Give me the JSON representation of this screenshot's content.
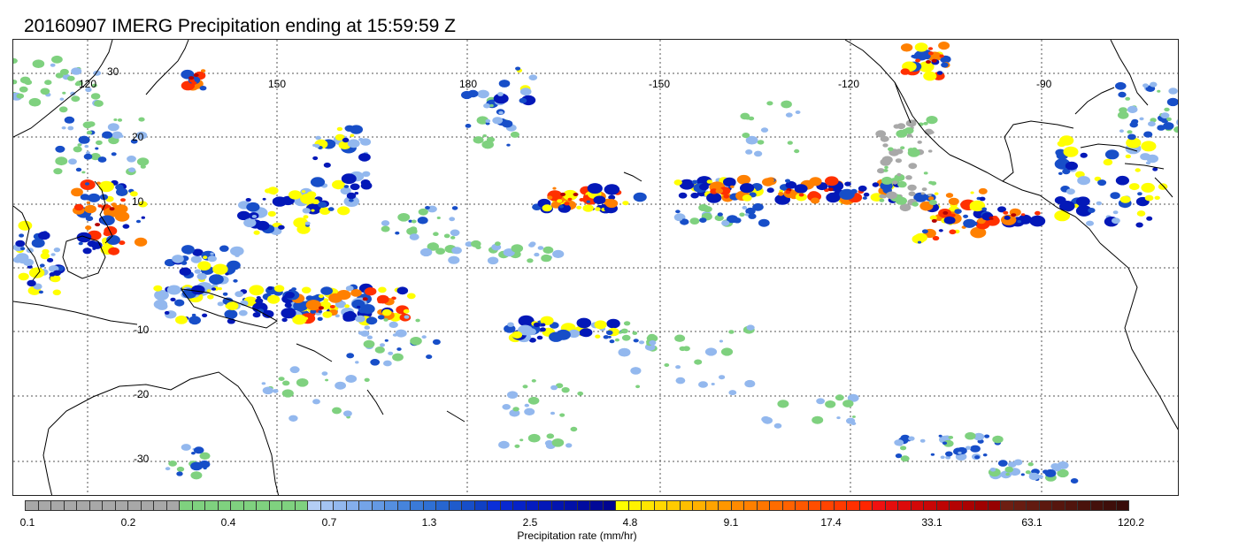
{
  "title": "20160907 IMERG Precipitation ending at 15:59:59 Z",
  "map": {
    "lon_labels": [
      "120",
      "150",
      "180",
      "-150",
      "-120",
      "-90"
    ],
    "lat_labels": [
      "30",
      "20",
      "10",
      "-10",
      "-20",
      "-30"
    ],
    "coastline_color": "#000000",
    "gridline_color": "#555555"
  },
  "legend": {
    "label": "Precipitation rate (mm/hr)",
    "tick_labels": [
      "0.1",
      "0.2",
      "0.4",
      "0.7",
      "1.3",
      "2.5",
      "4.8",
      "9.1",
      "17.4",
      "33.1",
      "63.1",
      "120.2"
    ],
    "colors": [
      "#a8a8a8",
      "#a8a8a8",
      "#a8a8a8",
      "#a8a8a8",
      "#a8a8a8",
      "#a8a8a8",
      "#a8a8a8",
      "#a8a8a8",
      "#a8a8a8",
      "#a8a8a8",
      "#a8a8a8",
      "#a8a8a8",
      "#7fd17f",
      "#7fd17f",
      "#7fd17f",
      "#7fd17f",
      "#7fd17f",
      "#7fd17f",
      "#7fd17f",
      "#7fd17f",
      "#7fd17f",
      "#7fd17f",
      "#b4cdf5",
      "#a4c3f2",
      "#93b8ee",
      "#84aeec",
      "#74a4e8",
      "#6499e4",
      "#558fe0",
      "#4684dc",
      "#3a7ad8",
      "#2f70d4",
      "#2766d0",
      "#1f5bcc",
      "#174ec8",
      "#1040c4",
      "#0a2fd8",
      "#0828d0",
      "#0622c8",
      "#041cc0",
      "#0318b8",
      "#0214b0",
      "#0210a8",
      "#010ca0",
      "#010898",
      "#000490",
      "#ffff00",
      "#fff200",
      "#ffe500",
      "#ffd800",
      "#ffcb00",
      "#ffbe00",
      "#ffb100",
      "#ffa400",
      "#ff9700",
      "#ff8a00",
      "#ff8000",
      "#ff7600",
      "#ff6c00",
      "#ff6200",
      "#ff5800",
      "#ff4e00",
      "#ff4400",
      "#ff3a00",
      "#ff3000",
      "#ff2600",
      "#f01010",
      "#e60d0d",
      "#dc0a0a",
      "#d20808",
      "#c80606",
      "#be0404",
      "#b40303",
      "#aa0202",
      "#a00101",
      "#960000",
      "#6e1e12",
      "#681c11",
      "#621a10",
      "#5c180f",
      "#56160e",
      "#50140d",
      "#4a120c",
      "#44100b",
      "#3e0e0a",
      "#380c09"
    ]
  }
}
